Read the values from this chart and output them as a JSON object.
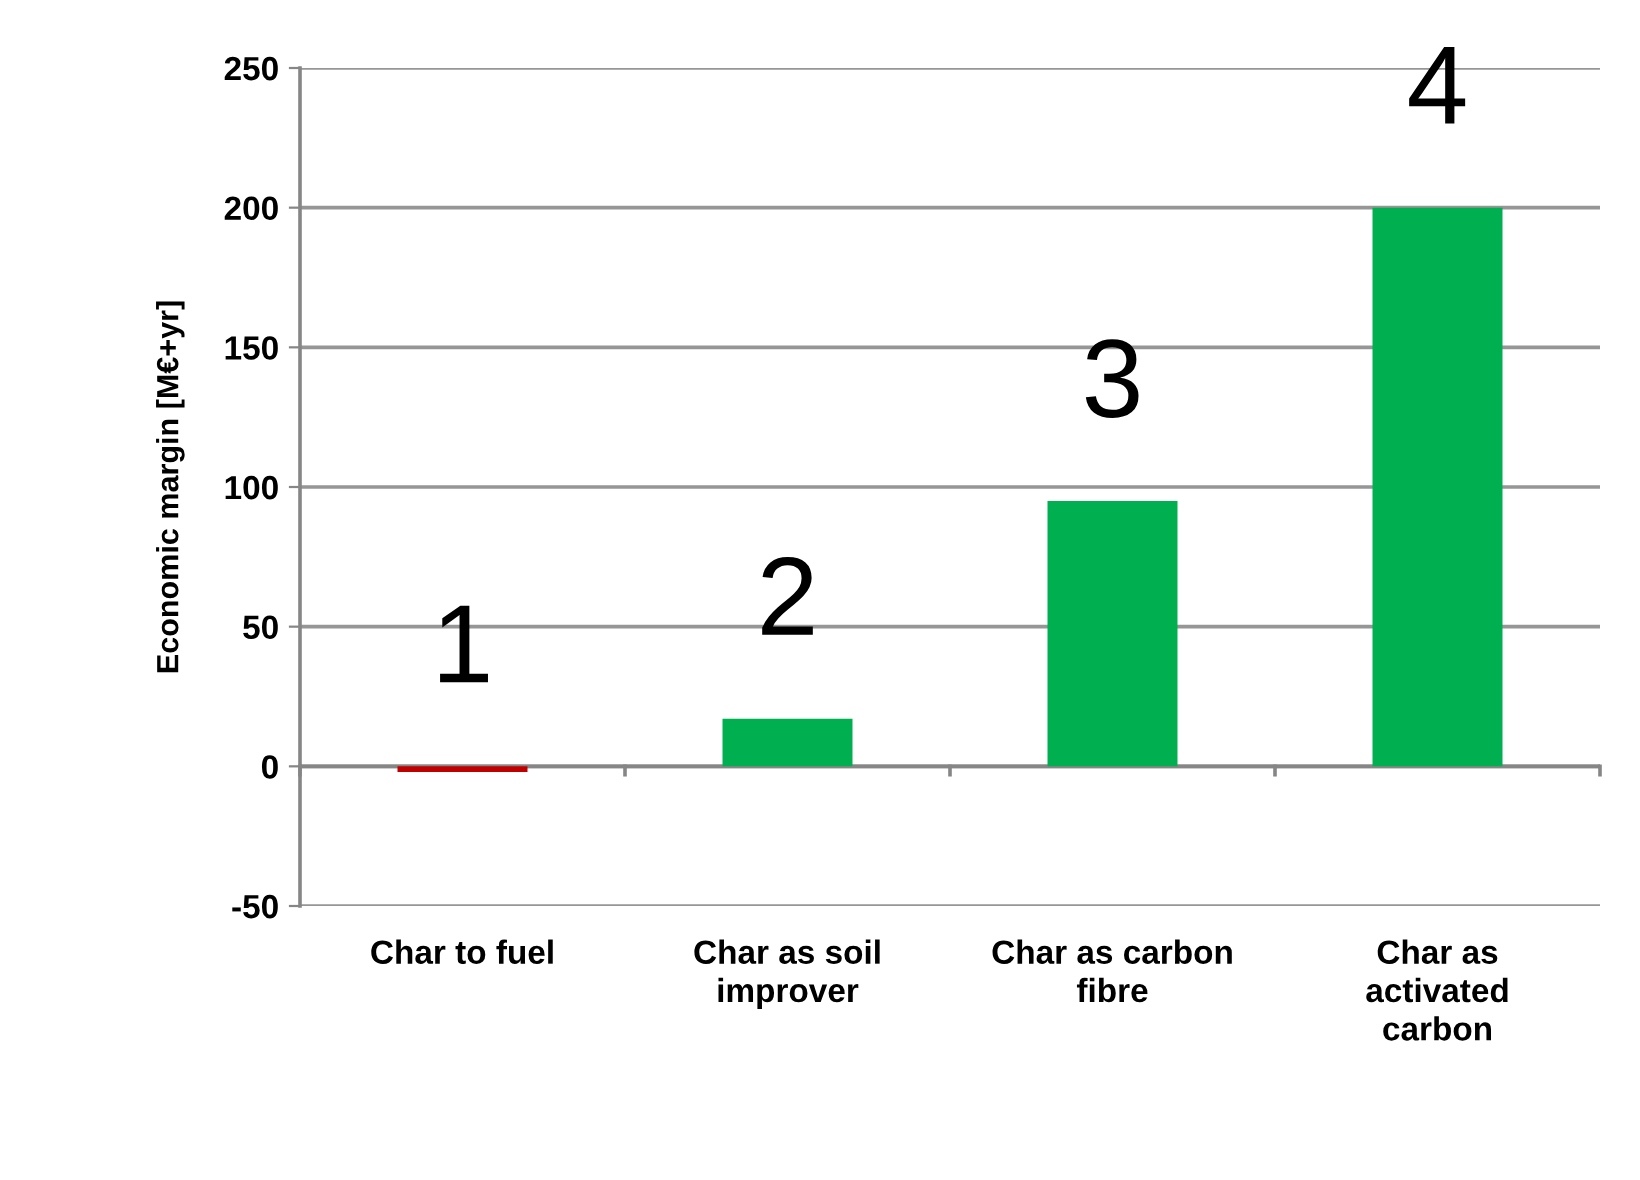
{
  "chart_data": {
    "type": "bar",
    "ylabel": "Economic margin [M€+yr]",
    "categories": [
      "Char to fuel",
      "Char as soil\nimprover",
      "Char as carbon\nfibre",
      "Char as\nactivated\ncarbon"
    ],
    "values": [
      -2,
      17,
      95,
      200
    ],
    "colors": [
      "#c00000",
      "#00b050",
      "#00b050",
      "#00b050"
    ],
    "ylim": [
      -50,
      250
    ],
    "yticks": [
      -50,
      0,
      50,
      100,
      150,
      200,
      250
    ],
    "grid": "y",
    "annotations": [
      "1",
      "2",
      "3",
      "4"
    ]
  }
}
